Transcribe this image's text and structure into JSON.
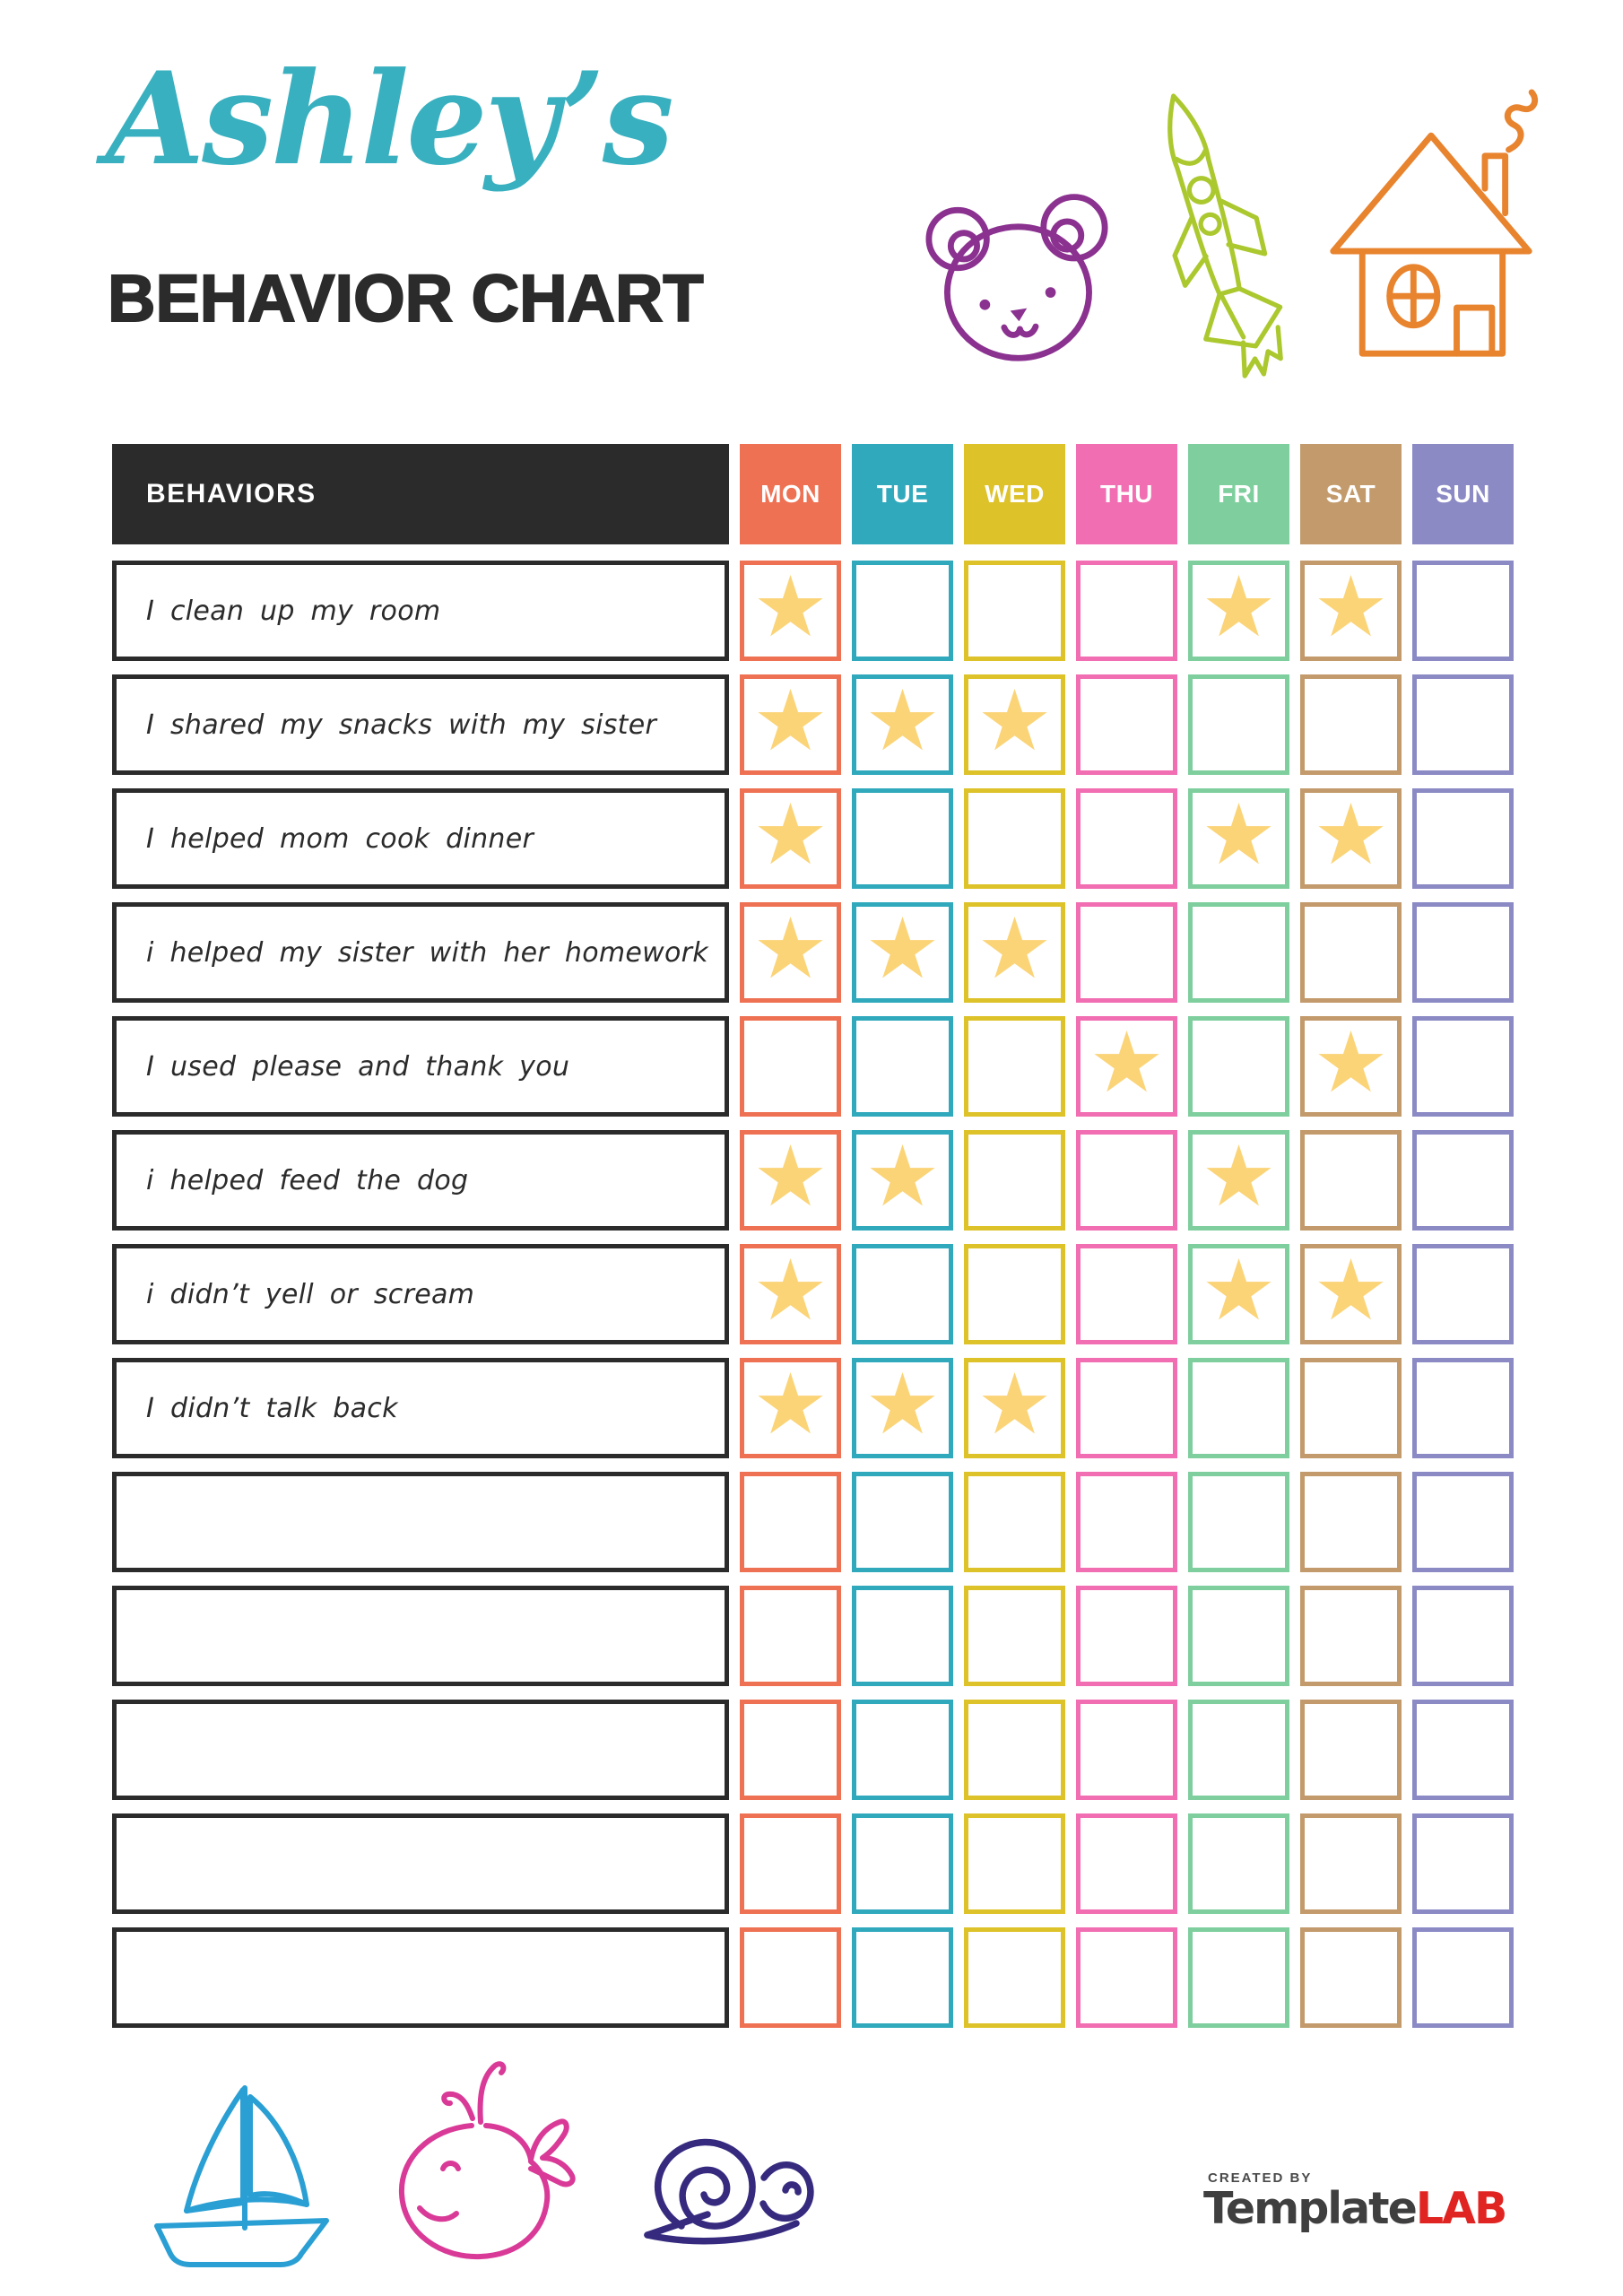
{
  "header": {
    "name": "Ashley’s",
    "title": "BEHAVIOR CHART"
  },
  "colors": {
    "name_accent": "#39b0bf",
    "title_text": "#2b2b2b",
    "table_header_bg": "#2b2b2b",
    "table_header_text": "#ffffff",
    "row_border": "#2b2b2b",
    "star": "#fbd478",
    "brand_primary": "#3f3f3f",
    "brand_accent": "#e02421",
    "doodles": {
      "bear": "#8b3190",
      "rocket": "#abc82f",
      "house": "#e8832e",
      "sailboat": "#2a9fd4",
      "whale": "#d93a97",
      "snail": "#352a7e"
    }
  },
  "icons": {
    "star_glyph": "★",
    "names": [
      "bear-icon",
      "rocket-icon",
      "house-icon",
      "sailboat-icon",
      "whale-icon",
      "snail-icon",
      "star-icon"
    ]
  },
  "table": {
    "behaviors_header": "BEHAVIORS",
    "days": [
      {
        "label": "MON",
        "color": "#ee7153"
      },
      {
        "label": "TUE",
        "color": "#31a9bd"
      },
      {
        "label": "WED",
        "color": "#ddc229"
      },
      {
        "label": "THU",
        "color": "#f16eb2"
      },
      {
        "label": "FRI",
        "color": "#7fcf9e"
      },
      {
        "label": "SAT",
        "color": "#c39a6b"
      },
      {
        "label": "SUN",
        "color": "#8b8ac5"
      }
    ],
    "rows": [
      {
        "label": "I clean up my room",
        "stars": [
          true,
          false,
          false,
          false,
          true,
          true,
          false
        ]
      },
      {
        "label": "I shared my snacks with my sister",
        "stars": [
          true,
          true,
          true,
          false,
          false,
          false,
          false
        ]
      },
      {
        "label": "I helped mom cook dinner",
        "stars": [
          true,
          false,
          false,
          false,
          true,
          true,
          false
        ]
      },
      {
        "label": "i helped my sister with her homework",
        "stars": [
          true,
          true,
          true,
          false,
          false,
          false,
          false
        ]
      },
      {
        "label": "I used please and thank you",
        "stars": [
          false,
          false,
          false,
          true,
          false,
          true,
          false
        ]
      },
      {
        "label": "i helped feed the dog",
        "stars": [
          true,
          true,
          false,
          false,
          true,
          false,
          false
        ]
      },
      {
        "label": "i didn’t yell or scream",
        "stars": [
          true,
          false,
          false,
          false,
          true,
          true,
          false
        ]
      },
      {
        "label": "I didn’t talk back",
        "stars": [
          true,
          true,
          true,
          false,
          false,
          false,
          false
        ]
      },
      {
        "label": "",
        "stars": [
          false,
          false,
          false,
          false,
          false,
          false,
          false
        ]
      },
      {
        "label": "",
        "stars": [
          false,
          false,
          false,
          false,
          false,
          false,
          false
        ]
      },
      {
        "label": "",
        "stars": [
          false,
          false,
          false,
          false,
          false,
          false,
          false
        ]
      },
      {
        "label": "",
        "stars": [
          false,
          false,
          false,
          false,
          false,
          false,
          false
        ]
      },
      {
        "label": "",
        "stars": [
          false,
          false,
          false,
          false,
          false,
          false,
          false
        ]
      }
    ]
  },
  "footer": {
    "created_by": "CREATED BY",
    "brand_primary": "Template",
    "brand_accent": "LAB"
  }
}
